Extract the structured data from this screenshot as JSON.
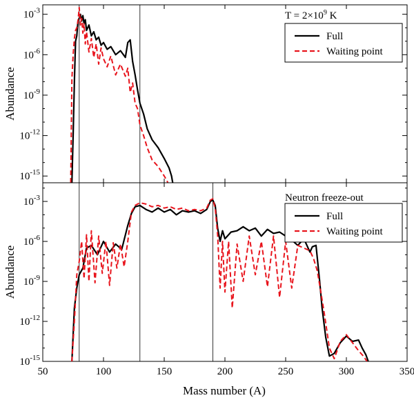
{
  "chart_data": {
    "type": "line",
    "shared_xlabel": "Mass number (A)",
    "xlim": [
      50,
      350
    ],
    "x_ticks": [
      50,
      100,
      150,
      200,
      250,
      300,
      350
    ],
    "x_tick_labels": [
      "50",
      "100",
      "150",
      "200",
      "250",
      "300",
      "350"
    ],
    "colors": {
      "full": "#000000",
      "waiting": "#e8141c"
    },
    "panels": [
      {
        "id": "top",
        "ylabel": "Abundance",
        "annotation": {
          "prefix": "T = 2×10",
          "exponent": "9",
          "suffix": " K"
        },
        "ylim_exp": [
          -15.5,
          -2.3
        ],
        "y_ticks": [
          {
            "base": "10",
            "exp": "-3",
            "value": -3
          },
          {
            "base": "10",
            "exp": "-6",
            "value": -6
          },
          {
            "base": "10",
            "exp": "-9",
            "value": -9
          },
          {
            "base": "10",
            "exp": "-12",
            "value": -12
          },
          {
            "base": "10",
            "exp": "-15",
            "value": -15
          }
        ],
        "vlines": [
          80,
          130
        ],
        "legend": {
          "position": "upper right",
          "entries": [
            "Full",
            "Waiting point"
          ]
        },
        "series": [
          {
            "name": "Full",
            "color_key": "full",
            "style": "solid",
            "x": [
              74,
              75,
              76,
              77,
              78,
              79,
              80,
              81,
              82,
              83,
              84,
              85,
              86,
              88,
              90,
              92,
              94,
              96,
              98,
              100,
              103,
              106,
              110,
              114,
              118,
              120,
              122,
              124,
              126,
              128,
              130,
              133,
              136,
              140,
              145,
              150,
              154,
              156,
              157
            ],
            "y": [
              -15.5,
              -12,
              -8,
              -5,
              -4.6,
              -3.5,
              -3.3,
              -3.0,
              -3.5,
              -3.1,
              -3.7,
              -3.4,
              -4.2,
              -3.8,
              -4.6,
              -4.3,
              -4.9,
              -4.7,
              -5.3,
              -5.1,
              -5.6,
              -5.4,
              -6.0,
              -5.7,
              -6.2,
              -5.1,
              -4.9,
              -6.5,
              -7.5,
              -8.6,
              -9.6,
              -10.4,
              -11.5,
              -12.3,
              -12.9,
              -13.7,
              -14.4,
              -15.0,
              -15.5
            ]
          },
          {
            "name": "Waiting point",
            "color_key": "waiting",
            "style": "dashed",
            "x": [
              73,
              74,
              75,
              76,
              77,
              78,
              79,
              80,
              81,
              82,
              83,
              84,
              85,
              86,
              88,
              90,
              92,
              94,
              96,
              98,
              100,
              103,
              106,
              110,
              114,
              118,
              120,
              122,
              124,
              126,
              128,
              130,
              133,
              136,
              140,
              145,
              150,
              152,
              153
            ],
            "y": [
              -15.5,
              -7.8,
              -6.0,
              -4.8,
              -4.2,
              -4.0,
              -3.5,
              -2.5,
              -3.8,
              -3.3,
              -4.4,
              -3.7,
              -5.2,
              -4.3,
              -5.8,
              -4.8,
              -6.2,
              -5.2,
              -6.7,
              -5.5,
              -6.3,
              -6.9,
              -6.1,
              -7.5,
              -6.7,
              -7.6,
              -7.0,
              -8.8,
              -8.1,
              -9.6,
              -10.0,
              -11.2,
              -12.0,
              -12.9,
              -13.8,
              -14.3,
              -15.0,
              -15.3,
              -15.5
            ]
          }
        ]
      },
      {
        "id": "bottom",
        "ylabel": "Abundance",
        "annotation": {
          "prefix": "Neutron freeze-out",
          "exponent": "",
          "suffix": ""
        },
        "ylim_exp": [
          -15,
          -1.6
        ],
        "y_ticks": [
          {
            "base": "10",
            "exp": "-3",
            "value": -3
          },
          {
            "base": "10",
            "exp": "-6",
            "value": -6
          },
          {
            "base": "10",
            "exp": "-9",
            "value": -9
          },
          {
            "base": "10",
            "exp": "-12",
            "value": -12
          },
          {
            "base": "10",
            "exp": "-15",
            "value": -15
          }
        ],
        "vlines": [
          80,
          130,
          190
        ],
        "legend": {
          "position": "upper right",
          "entries": [
            "Full",
            "Waiting point"
          ]
        },
        "series": [
          {
            "name": "Full",
            "color_key": "full",
            "style": "solid",
            "x": [
              74,
              76,
              78,
              80,
              83,
              86,
              90,
              95,
              100,
              105,
              110,
              115,
              120,
              123,
              126,
              130,
              135,
              140,
              145,
              150,
              155,
              160,
              165,
              170,
              175,
              180,
              185,
              188,
              190,
              192,
              194,
              196,
              198,
              200,
              205,
              210,
              215,
              220,
              225,
              230,
              235,
              240,
              245,
              250,
              255,
              260,
              265,
              270,
              272,
              275,
              278,
              280,
              283,
              286,
              290,
              295,
              300,
              305,
              310,
              313,
              316,
              318
            ],
            "y": [
              -15.0,
              -11.0,
              -9.5,
              -8.5,
              -8.0,
              -6.5,
              -6.3,
              -7.0,
              -6.0,
              -6.8,
              -6.2,
              -6.6,
              -4.8,
              -3.9,
              -3.4,
              -3.3,
              -3.6,
              -3.8,
              -3.5,
              -3.8,
              -3.6,
              -4.0,
              -3.7,
              -3.8,
              -3.7,
              -3.9,
              -3.6,
              -3.0,
              -2.9,
              -3.3,
              -5.0,
              -6.0,
              -5.2,
              -5.8,
              -5.3,
              -5.2,
              -4.9,
              -5.2,
              -5.0,
              -5.6,
              -5.1,
              -5.4,
              -5.3,
              -5.6,
              -5.9,
              -6.3,
              -5.8,
              -6.8,
              -6.4,
              -6.3,
              -9.0,
              -11.0,
              -13.2,
              -14.6,
              -14.4,
              -13.6,
              -13.1,
              -13.5,
              -13.4,
              -14.0,
              -14.5,
              -15.0
            ]
          },
          {
            "name": "Waiting point",
            "color_key": "waiting",
            "style": "dashed",
            "x": [
              74,
              76,
              78,
              80,
              82,
              84,
              86,
              88,
              90,
              93,
              96,
              99,
              102,
              105,
              108,
              111,
              114,
              117,
              120,
              123,
              126,
              130,
              135,
              140,
              145,
              150,
              155,
              160,
              165,
              170,
              175,
              180,
              185,
              188,
              190,
              192,
              194,
              196,
              198,
              200,
              203,
              206,
              210,
              215,
              220,
              225,
              230,
              235,
              240,
              245,
              250,
              255,
              260,
              265,
              270,
              273,
              276,
              279,
              282,
              286,
              290,
              295,
              300,
              305,
              310,
              314,
              317
            ],
            "y": [
              -15.0,
              -12.0,
              -8.5,
              -7.5,
              -6.0,
              -8.8,
              -5.5,
              -9.0,
              -5.2,
              -9.1,
              -5.6,
              -8.4,
              -6.0,
              -9.3,
              -6.1,
              -8.0,
              -6.2,
              -7.9,
              -6.0,
              -3.8,
              -3.3,
              -3.1,
              -3.2,
              -3.4,
              -3.3,
              -3.5,
              -3.4,
              -3.6,
              -3.5,
              -3.7,
              -3.6,
              -3.7,
              -3.5,
              -2.9,
              -2.8,
              -3.5,
              -5.5,
              -9.5,
              -6.0,
              -9.8,
              -6.0,
              -11.0,
              -6.2,
              -9.0,
              -5.6,
              -8.5,
              -6.0,
              -9.4,
              -5.6,
              -10.2,
              -6.0,
              -9.5,
              -6.3,
              -6.5,
              -6.7,
              -7.3,
              -8.2,
              -9.8,
              -11.5,
              -14.0,
              -14.8,
              -13.5,
              -13.0,
              -13.6,
              -14.2,
              -14.6,
              -15.0
            ]
          }
        ]
      }
    ]
  }
}
